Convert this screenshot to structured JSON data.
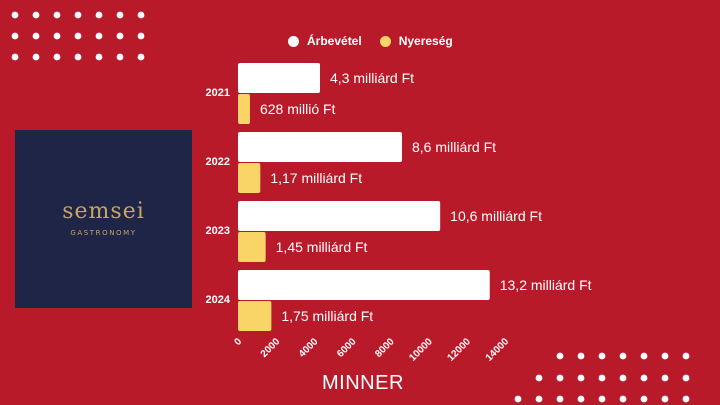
{
  "logo": {
    "word": "semsei",
    "subtitle": "GASTRONOMY"
  },
  "source": "MINNER",
  "colors": {
    "background": "#b91a2a",
    "revenue": "#ffffff",
    "profit": "#f8d566",
    "logo_bg": "#1f2547",
    "logo_text": "#c7a468"
  },
  "chart_data": {
    "type": "bar",
    "orientation": "horizontal",
    "categories": [
      "2021",
      "2022",
      "2023",
      "2024"
    ],
    "series": [
      {
        "name": "Árbevétel",
        "values": [
          4300,
          8600,
          10600,
          13200
        ],
        "labels": [
          "4,3 milliárd Ft",
          "8,6 milliárd Ft",
          "10,6 milliárd Ft",
          "13,2 milliárd Ft"
        ]
      },
      {
        "name": "Nyereség",
        "values": [
          628,
          1170,
          1450,
          1750
        ],
        "labels": [
          "628 millió Ft",
          "1,17 milliárd Ft",
          "1,45 milliárd Ft",
          "1,75 milliárd Ft"
        ]
      }
    ],
    "xticks": [
      0,
      2000,
      4000,
      6000,
      8000,
      10000,
      12000,
      14000
    ],
    "xlim": [
      0,
      14000
    ],
    "legend": "top",
    "grid": false
  }
}
